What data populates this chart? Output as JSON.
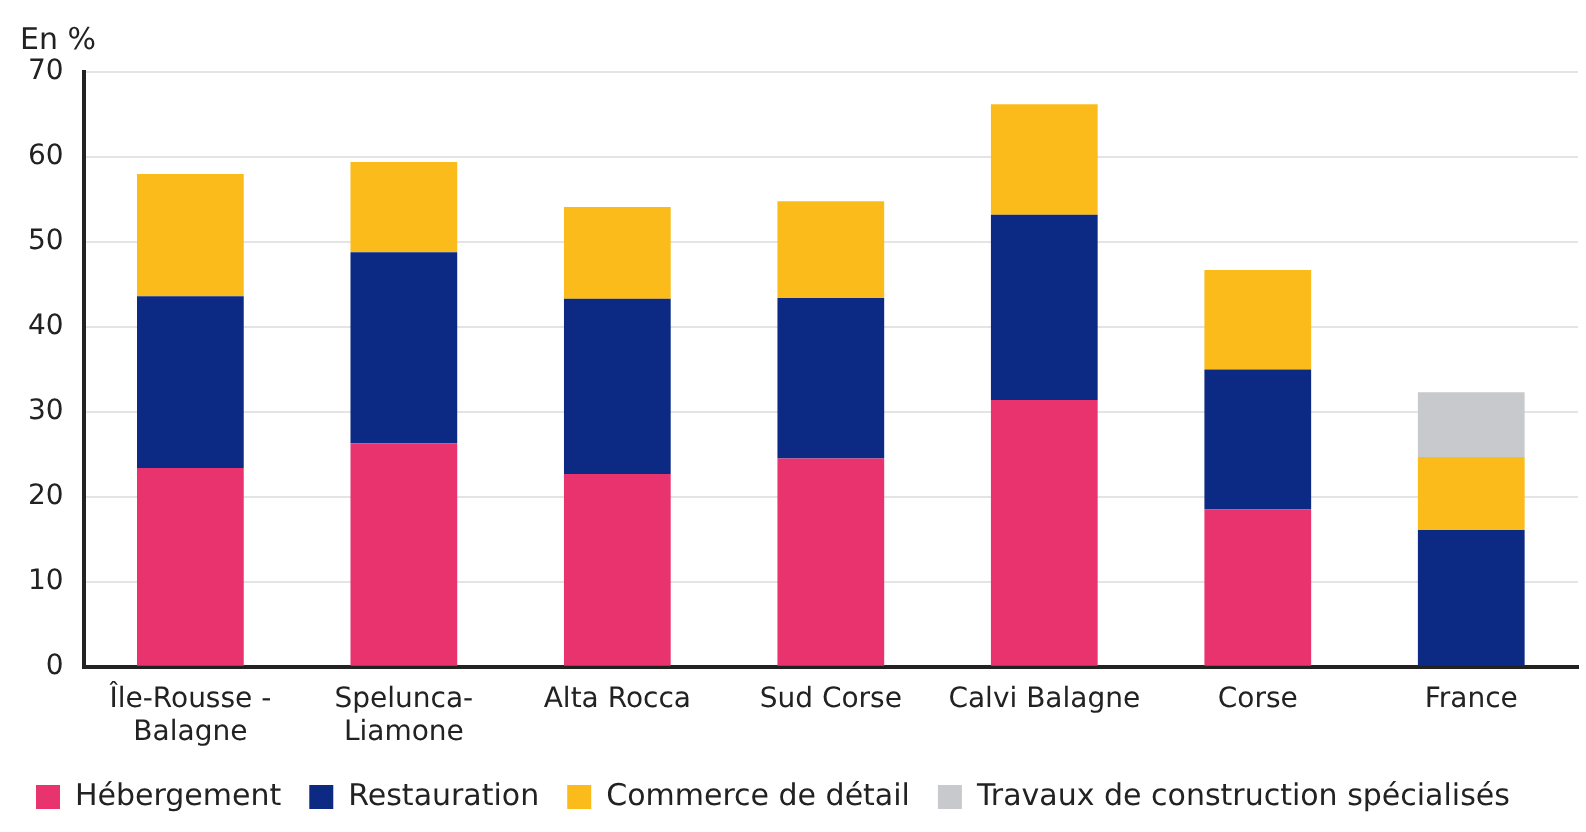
{
  "chart_data": {
    "type": "bar",
    "stacked": true,
    "ylabel": "En %",
    "categories": [
      "Île-Rousse - Balagne",
      "Spelunca-Liamone",
      "Alta Rocca",
      "Sud Corse",
      "Calvi Balagne",
      "Corse",
      "France"
    ],
    "series": [
      {
        "name": "Hébergement",
        "color": "#e8336f",
        "values": [
          23.4,
          26.3,
          22.7,
          24.5,
          31.4,
          18.5,
          0
        ]
      },
      {
        "name": "Restauration",
        "color": "#0c2a83",
        "values": [
          20.2,
          22.5,
          20.6,
          18.9,
          21.8,
          16.5,
          16.1
        ]
      },
      {
        "name": "Commerce de détail",
        "color": "#fbbb1a",
        "values": [
          14.4,
          10.6,
          10.8,
          11.4,
          13.0,
          11.7,
          8.6
        ]
      },
      {
        "name": "Travaux de construction spécialisés",
        "color": "#c8c9cc",
        "values": [
          null,
          null,
          null,
          null,
          null,
          null,
          7.6
        ]
      }
    ],
    "ylim": [
      0,
      70
    ],
    "yticks": [
      0,
      10,
      20,
      30,
      40,
      50,
      60,
      70
    ],
    "grid": "y",
    "legend": "bottom"
  }
}
